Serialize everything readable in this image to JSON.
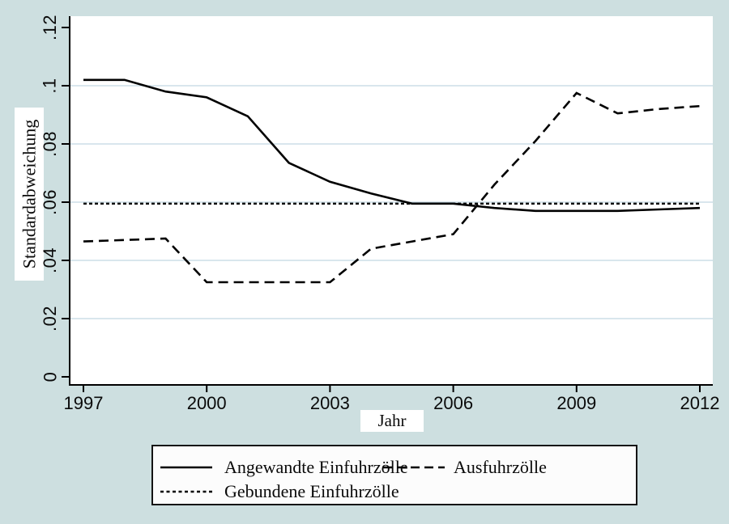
{
  "figure": {
    "background_color": "#cddfe0",
    "plot_background": "#ffffff",
    "gridline_color": "#c2d6e2",
    "axis_color": "#000000",
    "text_color": "#0a0a0a"
  },
  "chart_data": {
    "type": "line",
    "title": "",
    "xlabel": "Jahr",
    "ylabel": "Standardabweichung",
    "x": [
      1997,
      1998,
      1999,
      2000,
      2001,
      2002,
      2003,
      2004,
      2005,
      2006,
      2007,
      2008,
      2009,
      2010,
      2011,
      2012
    ],
    "series": [
      {
        "name": "Angewandte Einfuhrzölle",
        "style": "solid",
        "color": "#000000",
        "values": [
          0.102,
          0.102,
          0.098,
          0.096,
          0.0895,
          0.0735,
          0.067,
          0.063,
          0.0595,
          0.0595,
          0.058,
          0.057,
          0.057,
          0.057,
          0.0575,
          0.058
        ]
      },
      {
        "name": "Ausfuhrzölle",
        "style": "dashed",
        "color": "#000000",
        "values": [
          0.0465,
          0.047,
          0.0475,
          0.0325,
          0.0325,
          0.0325,
          0.0325,
          0.044,
          0.0465,
          0.049,
          0.066,
          0.081,
          0.0975,
          0.0905,
          0.092,
          0.093
        ]
      },
      {
        "name": "Gebundene Einfuhrzölle",
        "style": "dotted",
        "color": "#000000",
        "values": [
          0.0595,
          0.0595,
          0.0595,
          0.0595,
          0.0595,
          0.0595,
          0.0595,
          0.0595,
          0.0595,
          0.0595,
          0.0595,
          0.0595,
          0.0595,
          0.0595,
          0.0595,
          0.0595
        ]
      }
    ],
    "ylim": [
      0,
      0.12
    ],
    "yticks": [
      {
        "value": 0,
        "label": "0"
      },
      {
        "value": 0.02,
        "label": ".02"
      },
      {
        "value": 0.04,
        "label": ".04"
      },
      {
        "value": 0.06,
        "label": ".06"
      },
      {
        "value": 0.08,
        "label": ".08"
      },
      {
        "value": 0.1,
        "label": ".1"
      },
      {
        "value": 0.12,
        "label": ".12"
      }
    ],
    "xticks": [
      {
        "value": 1997,
        "label": "1997"
      },
      {
        "value": 2000,
        "label": "2000"
      },
      {
        "value": 2003,
        "label": "2003"
      },
      {
        "value": 2006,
        "label": "2006"
      },
      {
        "value": 2009,
        "label": "2009"
      },
      {
        "value": 2012,
        "label": "2012"
      }
    ],
    "gridlines": [
      0.02,
      0.04,
      0.06,
      0.08,
      0.1
    ],
    "grid": true,
    "legend_position": "bottom"
  }
}
